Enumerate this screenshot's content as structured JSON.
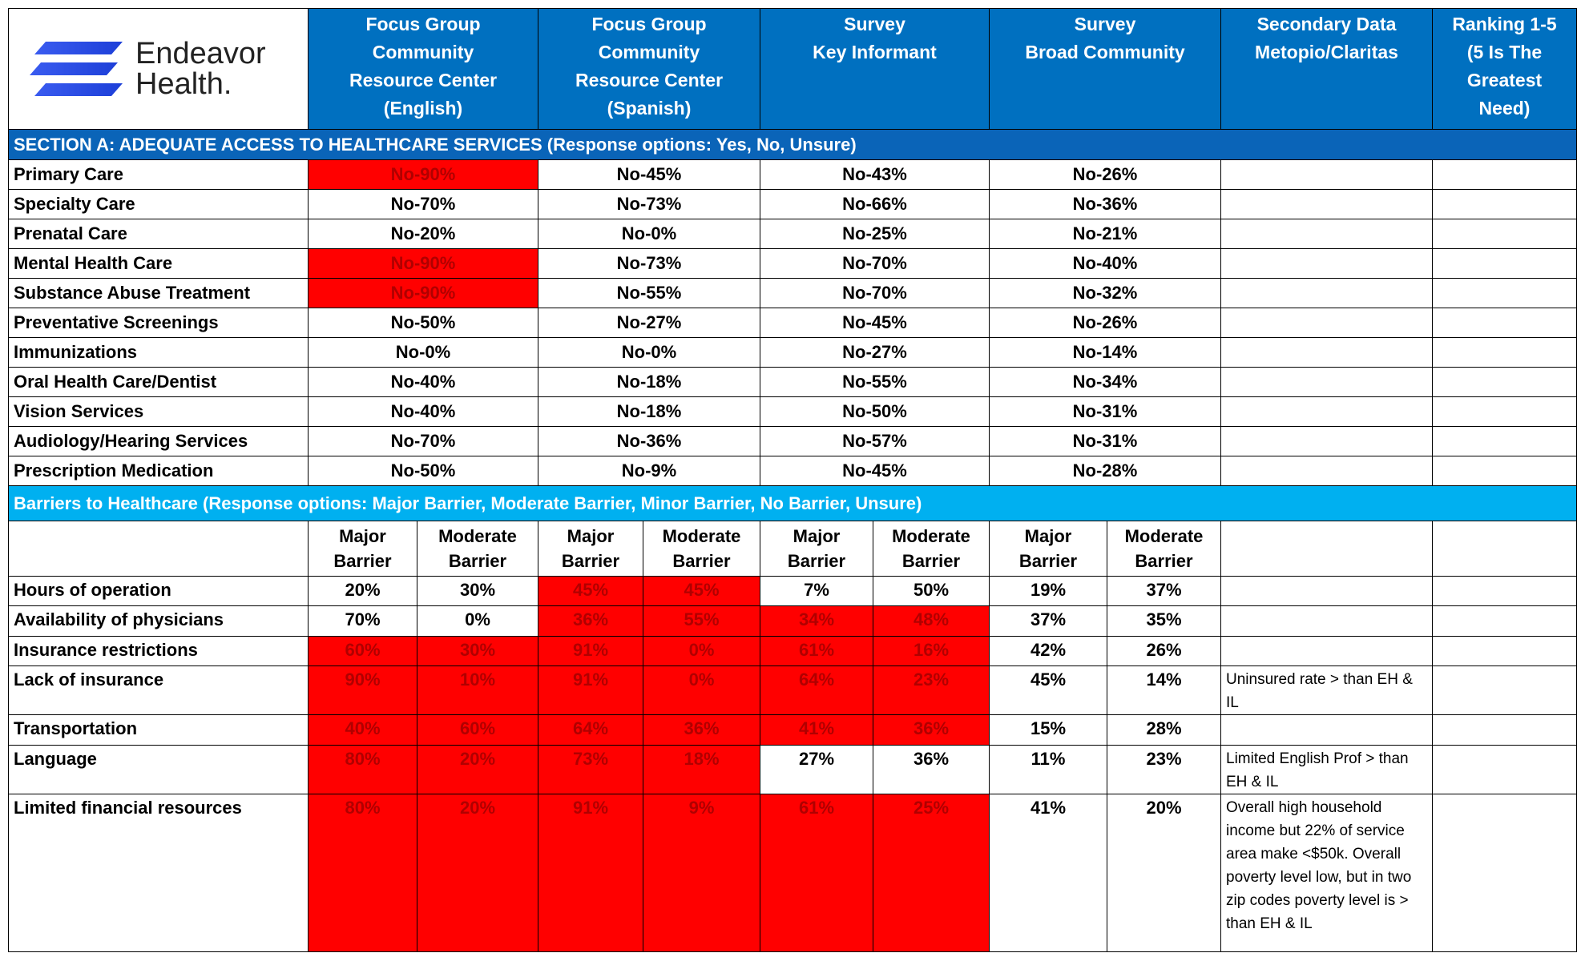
{
  "header": {
    "logo_line1": "Endeavor",
    "logo_line2": "Health.",
    "columns": [
      [
        "Focus Group",
        "Community",
        "Resource Center",
        "(English)"
      ],
      [
        "Focus Group",
        "Community",
        "Resource Center",
        "(Spanish)"
      ],
      [
        "Survey",
        "Key Informant"
      ],
      [
        "Survey",
        "Broad Community"
      ],
      [
        "Secondary Data",
        "Metopio/Claritas"
      ],
      [
        "Ranking 1-5",
        "(5 Is The",
        "Greatest",
        "Need)"
      ]
    ]
  },
  "section_a": {
    "title": "SECTION A: ADEQUATE ACCESS TO HEALTHCARE  SERVICES (Response options: Yes, No, Unsure)",
    "rows": [
      {
        "label": "Primary Care",
        "values": [
          "No-90%",
          "No-45%",
          "No-43%",
          "No-26%"
        ],
        "highlight": [
          true,
          false,
          false,
          false
        ]
      },
      {
        "label": "Specialty Care",
        "values": [
          "No-70%",
          "No-73%",
          "No-66%",
          "No-36%"
        ],
        "highlight": [
          false,
          false,
          false,
          false
        ]
      },
      {
        "label": "Prenatal Care",
        "values": [
          "No-20%",
          "No-0%",
          "No-25%",
          "No-21%"
        ],
        "highlight": [
          false,
          false,
          false,
          false
        ]
      },
      {
        "label": "Mental Health Care",
        "values": [
          "No-90%",
          "No-73%",
          "No-70%",
          "No-40%"
        ],
        "highlight": [
          true,
          false,
          false,
          false
        ]
      },
      {
        "label": "Substance Abuse Treatment",
        "values": [
          "No-90%",
          "No-55%",
          "No-70%",
          "No-32%"
        ],
        "highlight": [
          true,
          false,
          false,
          false
        ]
      },
      {
        "label": "Preventative Screenings",
        "values": [
          "No-50%",
          "No-27%",
          "No-45%",
          "No-26%"
        ],
        "highlight": [
          false,
          false,
          false,
          false
        ]
      },
      {
        "label": "Immunizations",
        "values": [
          "No-0%",
          "No-0%",
          "No-27%",
          "No-14%"
        ],
        "highlight": [
          false,
          false,
          false,
          false
        ]
      },
      {
        "label": "Oral Health Care/Dentist",
        "values": [
          "No-40%",
          "No-18%",
          "No-55%",
          "No-34%"
        ],
        "highlight": [
          false,
          false,
          false,
          false
        ]
      },
      {
        "label": "Vision Services",
        "values": [
          "No-40%",
          "No-18%",
          "No-50%",
          "No-31%"
        ],
        "highlight": [
          false,
          false,
          false,
          false
        ]
      },
      {
        "label": "Audiology/Hearing Services",
        "values": [
          "No-70%",
          "No-36%",
          "No-57%",
          "No-31%"
        ],
        "highlight": [
          false,
          false,
          false,
          false
        ]
      },
      {
        "label": "Prescription Medication",
        "values": [
          "No-50%",
          "No-9%",
          "No-45%",
          "No-28%"
        ],
        "highlight": [
          false,
          false,
          false,
          false
        ]
      }
    ]
  },
  "barriers": {
    "title": "Barriers to Healthcare (Response options: Major Barrier, Moderate Barrier, Minor Barrier, No Barrier, Unsure)",
    "subheaders": [
      "Major Barrier",
      "Moderate Barrier"
    ],
    "rows": [
      {
        "label": "Hours of operation",
        "values": [
          "20%",
          "30%",
          "45%",
          "45%",
          "7%",
          "50%",
          "19%",
          "37%"
        ],
        "highlight": [
          false,
          false,
          true,
          true,
          false,
          false,
          false,
          false
        ]
      },
      {
        "label": "Availability of physicians",
        "values": [
          "70%",
          "0%",
          "36%",
          "55%",
          "34%",
          "48%",
          "37%",
          "35%"
        ],
        "highlight": [
          false,
          false,
          true,
          true,
          true,
          true,
          false,
          false
        ]
      },
      {
        "label": "Insurance restrictions",
        "values": [
          "60%",
          "30%",
          "91%",
          "0%",
          "61%",
          "16%",
          "42%",
          "26%"
        ],
        "highlight": [
          true,
          true,
          true,
          true,
          true,
          true,
          false,
          false
        ]
      },
      {
        "label": "Lack of insurance",
        "values": [
          "90%",
          "10%",
          "91%",
          "0%",
          "64%",
          "23%",
          "45%",
          "14%"
        ],
        "highlight": [
          true,
          true,
          true,
          true,
          true,
          true,
          false,
          false
        ],
        "note": "Uninsured rate > than EH & IL"
      },
      {
        "label": "Transportation",
        "values": [
          "40%",
          "60%",
          "64%",
          "36%",
          "41%",
          "36%",
          "15%",
          "28%"
        ],
        "highlight": [
          true,
          true,
          true,
          true,
          true,
          true,
          false,
          false
        ]
      },
      {
        "label": "Language",
        "values": [
          "80%",
          "20%",
          "73%",
          "18%",
          "27%",
          "36%",
          "11%",
          "23%"
        ],
        "highlight": [
          true,
          true,
          true,
          true,
          false,
          false,
          false,
          false
        ],
        "note": "Limited English Prof > than EH & IL"
      },
      {
        "label": "Limited financial resources",
        "values": [
          "80%",
          "20%",
          "91%",
          "9%",
          "61%",
          "25%",
          "41%",
          "20%"
        ],
        "highlight": [
          true,
          true,
          true,
          true,
          true,
          true,
          false,
          false
        ],
        "note": "Overall high household income but 22% of service area make <$50k. Overall poverty level low, but in two zip codes poverty level is > than EH & IL"
      }
    ]
  }
}
